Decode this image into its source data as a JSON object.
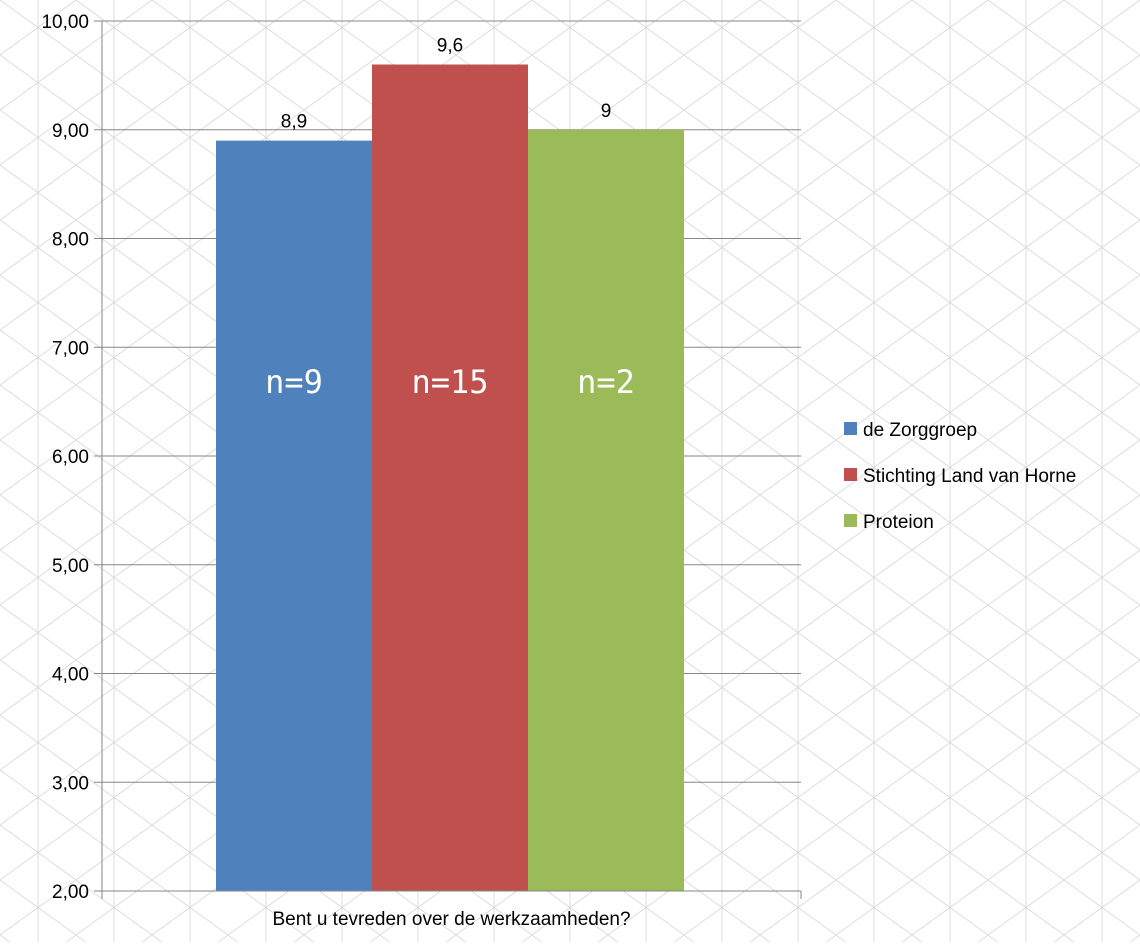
{
  "chart_data": {
    "type": "bar",
    "title": "",
    "xlabel": "",
    "ylabel": "",
    "categories": [
      "Bent u tevreden over de werkzaamheden?"
    ],
    "ylim": [
      2,
      10
    ],
    "yticks": [
      2,
      3,
      4,
      5,
      6,
      7,
      8,
      9,
      10
    ],
    "ytick_labels": [
      "2,00",
      "3,00",
      "4,00",
      "5,00",
      "6,00",
      "7,00",
      "8,00",
      "9,00",
      "10,00"
    ],
    "grid": true,
    "legend_position": "right",
    "series": [
      {
        "name": "de Zorggroep",
        "values": [
          8.9
        ],
        "data_label": "8,9",
        "color": "#4F81BD",
        "annotation": "n=9"
      },
      {
        "name": "Stichting Land van Horne",
        "values": [
          9.6
        ],
        "data_label": "9,6",
        "color": "#C0504D",
        "annotation": "n=15"
      },
      {
        "name": "Proteion",
        "values": [
          9
        ],
        "data_label": "9",
        "color": "#9BBB59",
        "annotation": "n=2"
      }
    ]
  },
  "style": {
    "gridline_color": "#868686",
    "background_pattern_color": "#dcdcdc"
  }
}
